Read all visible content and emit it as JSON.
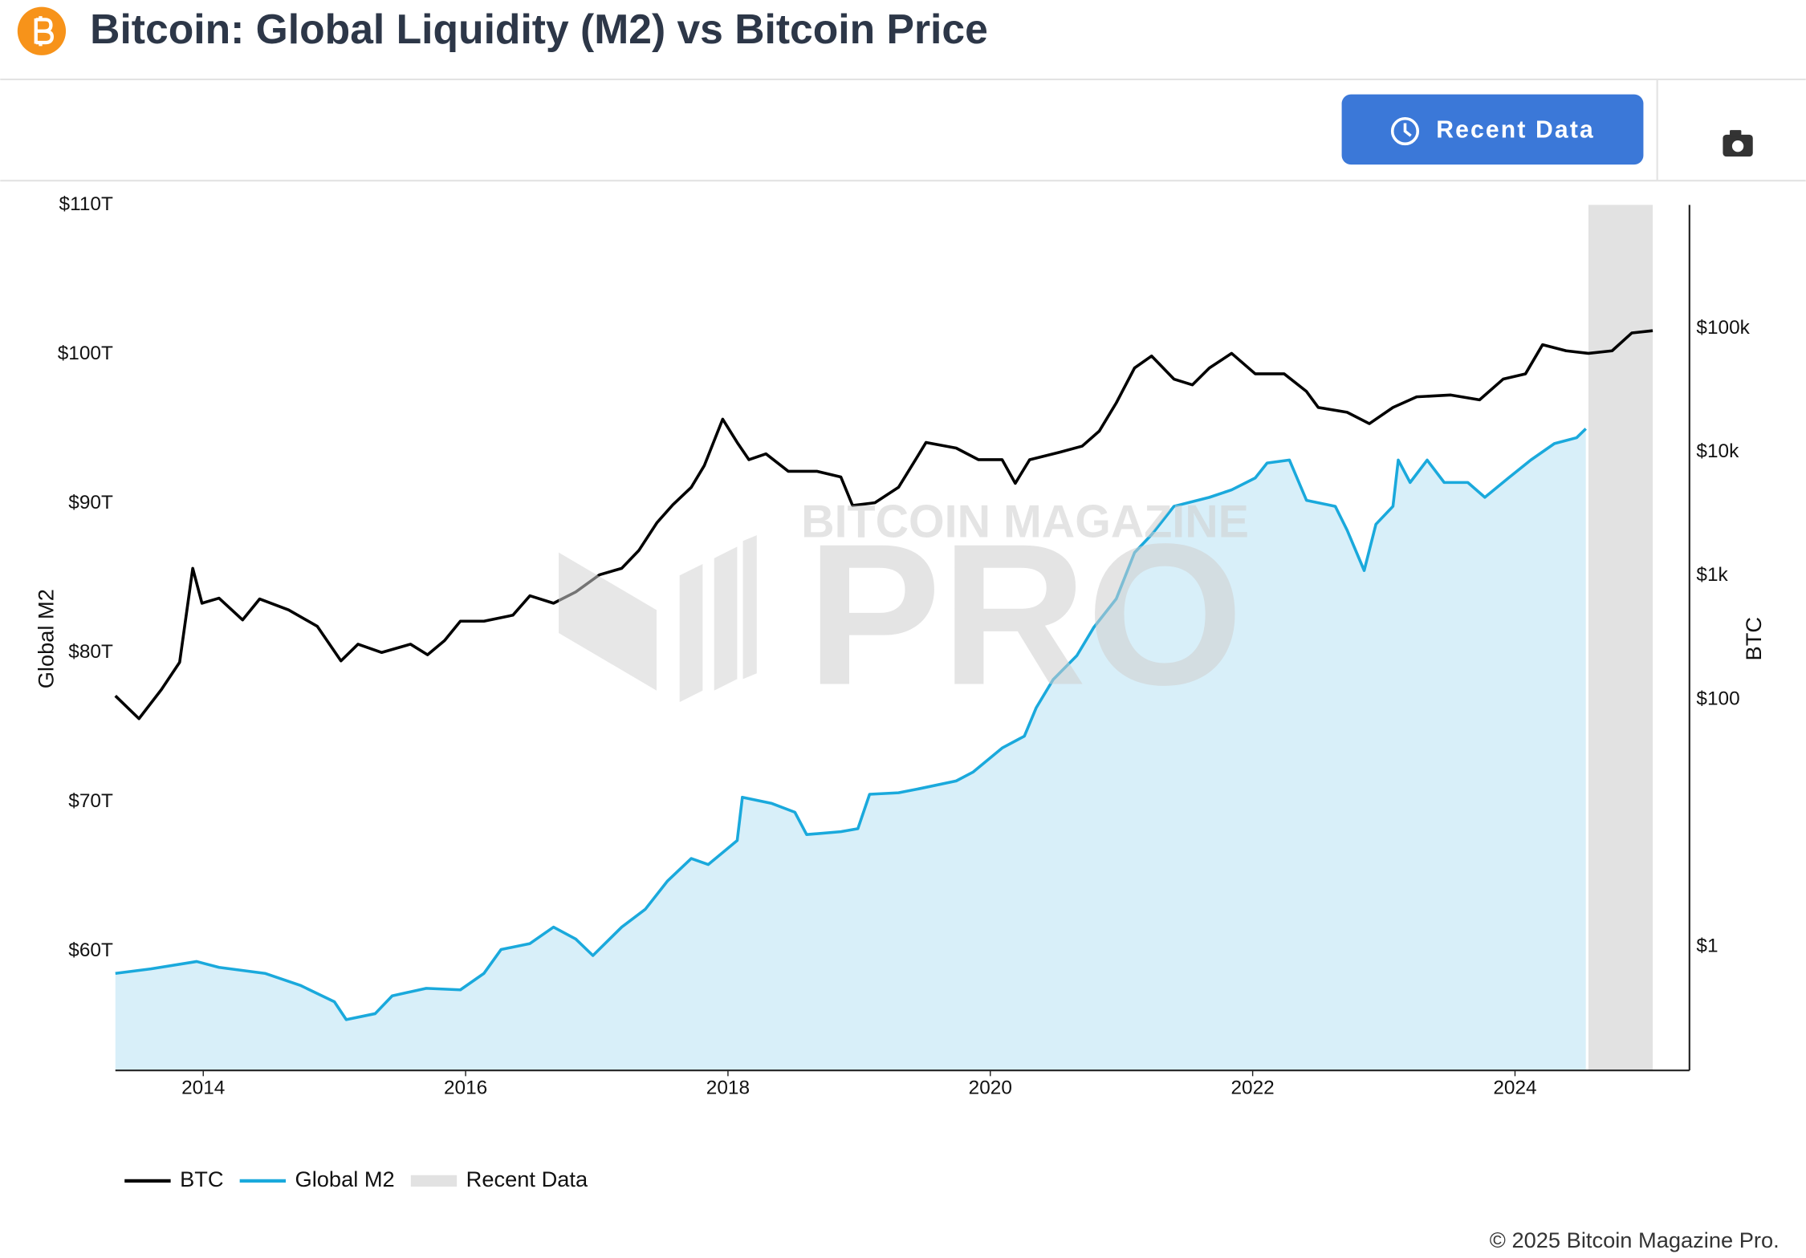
{
  "header": {
    "title": "Bitcoin: Global Liquidity (M2) vs Bitcoin Price"
  },
  "toolbar": {
    "button": "Recent Data"
  },
  "watermark": {
    "line1": "BITCOIN MAGAZINE",
    "line2": "PRO"
  },
  "footer": {
    "copyright": "© 2025 Bitcoin Magazine Pro."
  },
  "chart_data": {
    "type": "line",
    "y_label": "Global M2",
    "y2_label": "BTC",
    "xlim": [
      2013.33,
      2025.33
    ],
    "xticks": [
      2014,
      2016,
      2018,
      2020,
      2022,
      2024
    ],
    "ylim": [
      52,
      110
    ],
    "yticks": [
      {
        "value": 60,
        "label": "$60T"
      },
      {
        "value": 70,
        "label": "$70T"
      },
      {
        "value": 80,
        "label": "$80T"
      },
      {
        "value": 90,
        "label": "$90T"
      },
      {
        "value": 100,
        "label": "$100T"
      },
      {
        "value": 110,
        "label": "$110T"
      }
    ],
    "y2lim": [
      0.1,
      1000000
    ],
    "y2_log": true,
    "y2ticks": [
      {
        "value": 1,
        "label": "$1"
      },
      {
        "value": 100,
        "label": "$100"
      },
      {
        "value": 1000,
        "label": "$1k"
      },
      {
        "value": 10000,
        "label": "$10k"
      },
      {
        "value": 100000,
        "label": "$100k"
      }
    ],
    "legend": "bottom-left",
    "series": [
      {
        "name": "BTC",
        "color": "#000000",
        "axis": "y2",
        "x": [
          2013.33,
          2013.51,
          2013.68,
          2013.82,
          2013.92,
          2013.99,
          2014.12,
          2014.3,
          2014.43,
          2014.65,
          2014.87,
          2015.05,
          2015.18,
          2015.36,
          2015.58,
          2015.71,
          2015.84,
          2015.96,
          2016.14,
          2016.36,
          2016.49,
          2016.67,
          2016.84,
          2017.02,
          2017.19,
          2017.32,
          2017.46,
          2017.58,
          2017.72,
          2017.82,
          2017.96,
          2018.07,
          2018.16,
          2018.29,
          2018.46,
          2018.68,
          2018.86,
          2018.95,
          2019.12,
          2019.3,
          2019.43,
          2019.51,
          2019.74,
          2019.91,
          2020.09,
          2020.19,
          2020.3,
          2020.53,
          2020.7,
          2020.83,
          2020.96,
          2021.1,
          2021.23,
          2021.4,
          2021.54,
          2021.67,
          2021.84,
          2022.02,
          2022.24,
          2022.41,
          2022.5,
          2022.72,
          2022.89,
          2023.07,
          2023.25,
          2023.51,
          2023.73,
          2023.91,
          2024.08,
          2024.21,
          2024.39,
          2024.56,
          2024.74,
          2024.89,
          2025.05
        ],
        "values": [
          107,
          70,
          120,
          200,
          1150,
          600,
          660,
          440,
          650,
          530,
          390,
          205,
          280,
          240,
          280,
          230,
          300,
          430,
          430,
          480,
          690,
          600,
          740,
          1020,
          1150,
          1600,
          2700,
          3750,
          5200,
          7800,
          18500,
          12000,
          8700,
          9700,
          7000,
          7000,
          6300,
          3700,
          3900,
          5200,
          8700,
          12000,
          10800,
          8700,
          8700,
          5600,
          8700,
          10000,
          11200,
          14800,
          25000,
          48000,
          60000,
          39000,
          35000,
          48000,
          63000,
          43000,
          43000,
          31000,
          23000,
          21000,
          17000,
          23000,
          28000,
          29000,
          26500,
          39000,
          43000,
          74000,
          66000,
          63000,
          66000,
          92000,
          96000
        ]
      },
      {
        "name": "Global M2",
        "color": "#1aa9dc",
        "area_color": "#d8eff9",
        "axis": "y",
        "x": [
          2013.33,
          2013.6,
          2013.95,
          2014.12,
          2014.47,
          2014.74,
          2015.0,
          2015.09,
          2015.31,
          2015.44,
          2015.7,
          2015.96,
          2016.14,
          2016.27,
          2016.49,
          2016.67,
          2016.84,
          2016.97,
          2017.19,
          2017.37,
          2017.54,
          2017.72,
          2017.85,
          2018.07,
          2018.11,
          2018.33,
          2018.51,
          2018.6,
          2018.86,
          2018.99,
          2019.08,
          2019.3,
          2019.47,
          2019.74,
          2019.87,
          2020.09,
          2020.26,
          2020.35,
          2020.48,
          2020.66,
          2020.79,
          2020.96,
          2021.1,
          2021.23,
          2021.4,
          2021.67,
          2021.84,
          2022.02,
          2022.11,
          2022.28,
          2022.41,
          2022.63,
          2022.72,
          2022.85,
          2022.94,
          2023.07,
          2023.11,
          2023.2,
          2023.33,
          2023.46,
          2023.64,
          2023.77,
          2023.95,
          2024.12,
          2024.3,
          2024.47,
          2024.54
        ],
        "values": [
          58.5,
          58.8,
          59.3,
          58.9,
          58.5,
          57.7,
          56.6,
          55.4,
          55.8,
          57.0,
          57.5,
          57.4,
          58.5,
          60.1,
          60.5,
          61.6,
          60.8,
          59.7,
          61.6,
          62.8,
          64.7,
          66.2,
          65.8,
          67.4,
          70.3,
          69.9,
          69.3,
          67.8,
          68.0,
          68.2,
          70.5,
          70.6,
          70.9,
          71.4,
          72.0,
          73.6,
          74.4,
          76.3,
          78.2,
          79.8,
          81.7,
          83.6,
          86.7,
          87.9,
          89.8,
          90.4,
          90.9,
          91.7,
          92.7,
          92.9,
          90.2,
          89.8,
          88.2,
          85.5,
          88.6,
          89.8,
          92.9,
          91.4,
          92.9,
          91.4,
          91.4,
          90.4,
          91.7,
          92.9,
          94.0,
          94.4,
          95.0
        ]
      }
    ],
    "shaded_region": {
      "name": "Recent Data",
      "color": "#e2e2e2",
      "x": [
        2024.56,
        2025.05
      ]
    }
  }
}
